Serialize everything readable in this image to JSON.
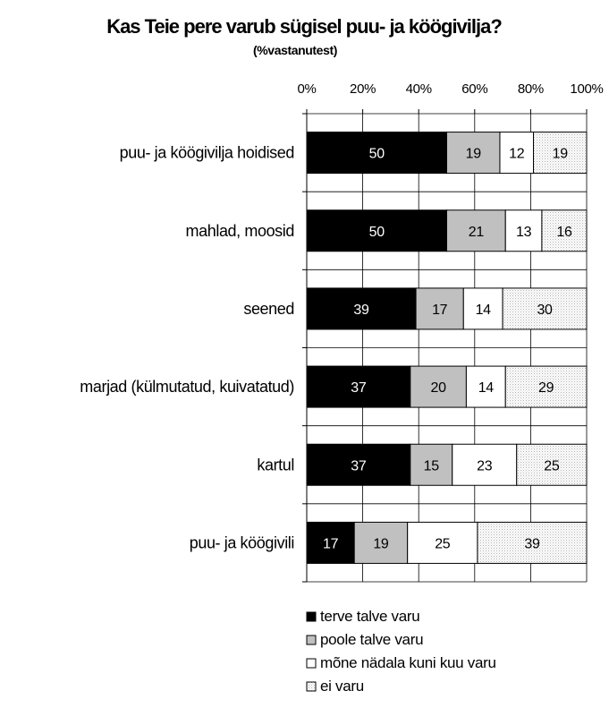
{
  "chart_data": {
    "type": "bar",
    "orientation": "horizontal",
    "stacked": true,
    "title": "Kas Teie pere varub sügisel puu- ja köögivilja?",
    "subtitle": "(%vastanutest)",
    "xlim": [
      0,
      100
    ],
    "x_ticks": [
      "0%",
      "20%",
      "40%",
      "60%",
      "80%",
      "100%"
    ],
    "categories": [
      "puu- ja köögivilja hoidised",
      "mahlad, moosid",
      "seened",
      "marjad (külmutatud, kuivatatud)",
      "kartul",
      "puu- ja köögivili"
    ],
    "series": [
      {
        "name": "terve talve varu",
        "color": "#000000",
        "label_color": "#ffffff",
        "values": [
          50,
          50,
          39,
          37,
          37,
          17
        ]
      },
      {
        "name": "poole talve varu",
        "color": "#c0c0c0",
        "label_color": "#000000",
        "values": [
          19,
          21,
          17,
          20,
          15,
          19
        ]
      },
      {
        "name": "mõne nädala kuni kuu varu",
        "color": "#ffffff",
        "label_color": "#000000",
        "values": [
          12,
          13,
          14,
          14,
          23,
          25
        ]
      },
      {
        "name": "ei varu",
        "color": "dotted-light-gray",
        "label_color": "#000000",
        "values": [
          19,
          16,
          30,
          29,
          25,
          39
        ]
      }
    ],
    "grid": true,
    "legend_position": "bottom"
  }
}
